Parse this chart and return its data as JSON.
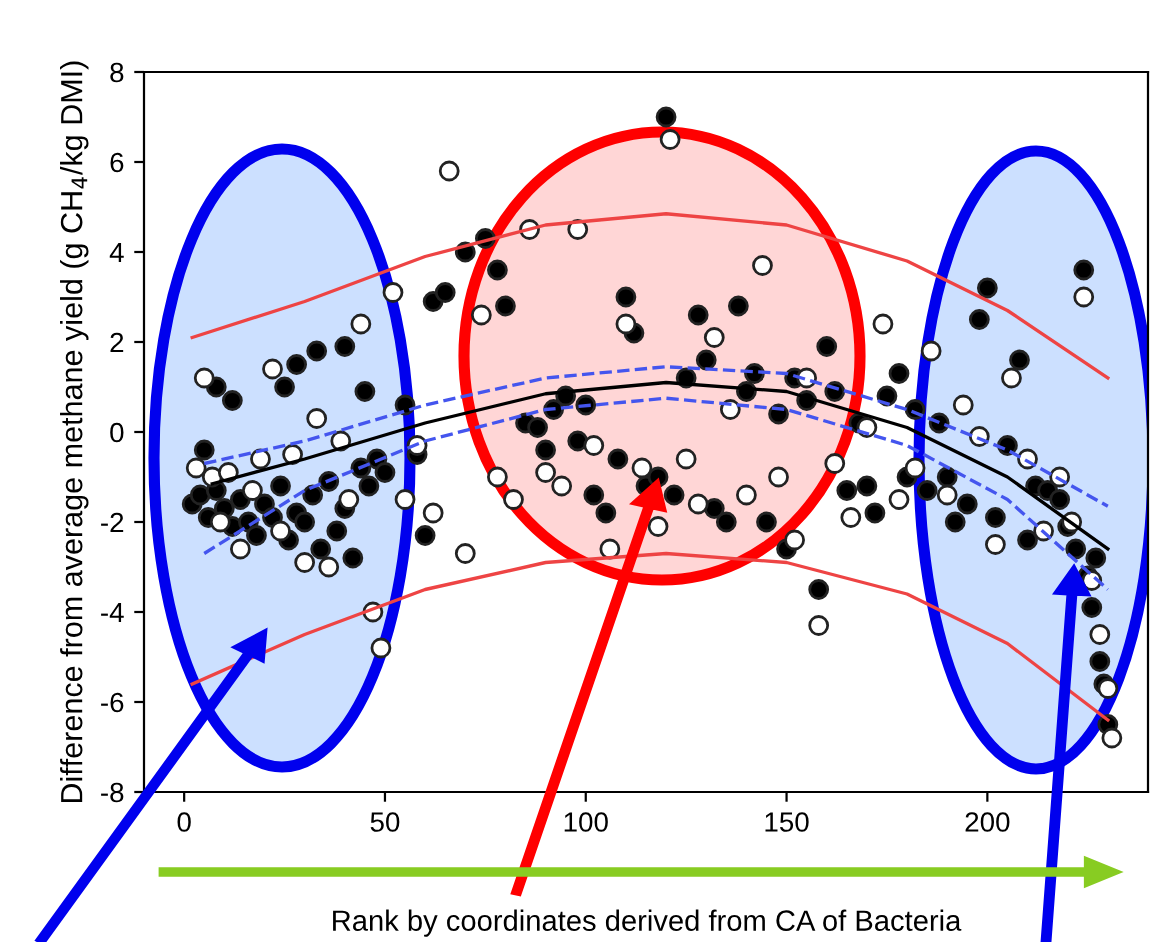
{
  "chart_data": {
    "type": "scatter",
    "xlabel": "Rank by coordinates derived from CA of Bacteria",
    "ylabel": "Difference from average methane yield (g CH$_{4}$/kg DMI)",
    "xlim": [
      -10,
      240
    ],
    "ylim": [
      -8,
      8
    ],
    "xticks": [
      0,
      50,
      100,
      150,
      200
    ],
    "yticks": [
      -8,
      -6,
      -4,
      -2,
      0,
      2,
      4,
      6,
      8
    ],
    "grid": false,
    "legend": false,
    "series": [
      {
        "color": "#000000",
        "marker": "circle",
        "x": [
          2,
          4,
          6,
          8,
          10,
          12,
          14,
          16,
          18,
          20,
          22,
          24,
          26,
          28,
          30,
          32,
          34,
          36,
          38,
          40,
          42,
          44,
          46,
          48,
          5,
          8,
          12,
          25,
          28,
          33,
          40,
          45,
          50,
          55,
          58,
          60,
          62,
          65,
          70,
          75,
          78,
          80,
          85,
          88,
          90,
          92,
          95,
          98,
          100,
          102,
          105,
          108,
          110,
          112,
          115,
          118,
          120,
          122,
          125,
          128,
          130,
          132,
          135,
          138,
          140,
          142,
          145,
          148,
          150,
          152,
          155,
          158,
          160,
          162,
          165,
          168,
          170,
          172,
          175,
          178,
          180,
          182,
          185,
          188,
          190,
          192,
          195,
          198,
          200,
          202,
          205,
          208,
          210,
          212,
          215,
          218,
          220,
          222,
          224,
          225,
          226,
          228,
          230,
          229,
          227
        ],
        "values": [
          -1.6,
          -1.4,
          -1.9,
          -1.3,
          -1.7,
          -2.1,
          -1.5,
          -2.0,
          -2.3,
          -1.6,
          -1.9,
          -1.2,
          -2.4,
          -1.8,
          -2.0,
          -1.4,
          -2.6,
          -1.1,
          -2.2,
          -1.7,
          -2.8,
          -0.8,
          -1.2,
          -0.6,
          -0.4,
          1.0,
          0.7,
          1.0,
          1.5,
          1.8,
          1.9,
          0.9,
          -0.9,
          0.6,
          -0.5,
          -2.3,
          2.9,
          3.1,
          4.0,
          4.3,
          3.6,
          2.8,
          0.2,
          0.1,
          -0.4,
          0.5,
          0.8,
          -0.2,
          0.6,
          -1.4,
          -1.8,
          -0.6,
          3.0,
          2.2,
          -1.2,
          -1.0,
          7.0,
          -1.4,
          1.2,
          2.6,
          1.6,
          -1.7,
          -2.0,
          2.8,
          0.9,
          1.3,
          -2.0,
          0.4,
          -2.6,
          1.2,
          0.7,
          -3.5,
          1.9,
          0.9,
          -1.3,
          0.2,
          -1.2,
          -1.8,
          0.8,
          1.3,
          -1.0,
          0.5,
          -1.3,
          0.2,
          -1.0,
          -2.0,
          -1.6,
          2.5,
          3.2,
          -1.9,
          -0.3,
          1.6,
          -2.4,
          -1.2,
          -1.3,
          -1.5,
          -2.1,
          -2.6,
          3.6,
          -3.2,
          -3.9,
          -5.1,
          -6.5,
          -5.6,
          -2.8
        ]
      },
      {
        "color": "#ffffff",
        "marker": "circle",
        "x": [
          3,
          5,
          7,
          9,
          11,
          14,
          17,
          19,
          22,
          24,
          27,
          30,
          33,
          36,
          39,
          41,
          44,
          47,
          49,
          52,
          55,
          58,
          62,
          66,
          70,
          74,
          78,
          82,
          86,
          90,
          94,
          98,
          102,
          106,
          110,
          114,
          118,
          121,
          125,
          128,
          132,
          136,
          140,
          144,
          148,
          152,
          155,
          158,
          162,
          166,
          170,
          174,
          178,
          182,
          186,
          190,
          194,
          198,
          202,
          206,
          210,
          214,
          218,
          221,
          224,
          226,
          228,
          230,
          231
        ],
        "values": [
          -0.8,
          1.2,
          -1.0,
          -2.0,
          -0.9,
          -2.6,
          -1.3,
          -0.6,
          1.4,
          -2.2,
          -0.5,
          -2.9,
          0.3,
          -3.0,
          -0.2,
          -1.5,
          2.4,
          -4.0,
          -4.8,
          3.1,
          -1.5,
          -0.3,
          -1.8,
          5.8,
          -2.7,
          2.6,
          -1.0,
          -1.5,
          4.5,
          -0.9,
          -1.2,
          4.5,
          -0.3,
          -2.6,
          2.4,
          -0.8,
          -2.1,
          6.5,
          -0.6,
          -1.6,
          2.1,
          0.5,
          -1.4,
          3.7,
          -1.0,
          -2.4,
          1.2,
          -4.3,
          -0.7,
          -1.9,
          0.1,
          2.4,
          -1.5,
          -0.8,
          1.8,
          -1.4,
          0.6,
          -0.1,
          -2.5,
          1.2,
          -0.6,
          -2.2,
          -1.0,
          -2.0,
          3.0,
          -3.3,
          -4.5,
          -5.7,
          -6.8
        ]
      },
      {
        "type": "line",
        "color": "#000000",
        "line_style": "solid",
        "x": [
          7,
          30,
          60,
          90,
          120,
          150,
          180,
          205,
          230
        ],
        "values": [
          -1.15,
          -0.6,
          0.2,
          0.85,
          1.1,
          0.9,
          0.1,
          -1.0,
          -2.6
        ]
      },
      {
        "type": "line",
        "color": "#4455ee",
        "line_style": "dashed",
        "x": [
          5,
          30,
          60,
          90,
          120,
          150,
          180,
          205,
          230
        ],
        "values": [
          -0.7,
          -0.2,
          0.6,
          1.2,
          1.45,
          1.3,
          0.5,
          -0.4,
          -1.65
        ]
      },
      {
        "type": "line",
        "color": "#4455ee",
        "line_style": "dashed",
        "x": [
          5,
          30,
          60,
          90,
          120,
          150,
          180,
          205,
          230
        ],
        "values": [
          -2.7,
          -1.3,
          -0.2,
          0.5,
          0.75,
          0.5,
          -0.3,
          -1.5,
          -3.5
        ]
      },
      {
        "type": "line",
        "color": "#ee4444",
        "line_style": "solid",
        "x": [
          2,
          30,
          60,
          90,
          120,
          150,
          180,
          205,
          230
        ],
        "values": [
          2.1,
          2.9,
          3.9,
          4.6,
          4.85,
          4.6,
          3.8,
          2.7,
          1.2
        ]
      },
      {
        "type": "line",
        "color": "#ee4444",
        "line_style": "solid",
        "x": [
          2,
          30,
          60,
          90,
          120,
          150,
          180,
          205,
          230
        ],
        "values": [
          -5.6,
          -4.5,
          -3.5,
          -2.9,
          -2.7,
          -2.9,
          -3.6,
          -4.7,
          -6.4
        ]
      }
    ]
  }
}
